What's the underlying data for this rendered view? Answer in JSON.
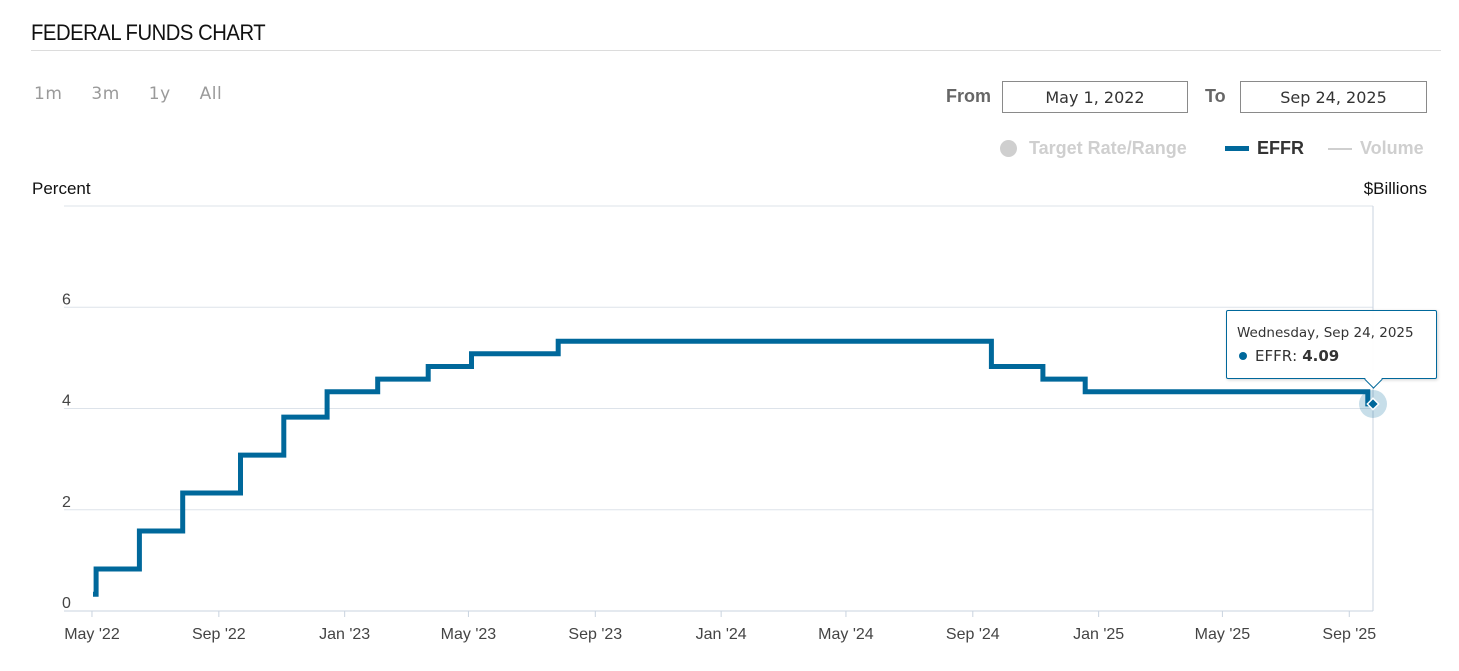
{
  "header": {
    "title": "FEDERAL FUNDS CHART"
  },
  "range_buttons": [
    "1m",
    "3m",
    "1y",
    "All"
  ],
  "date_range": {
    "from_label": "From",
    "from_value": "May 1, 2022",
    "to_label": "To",
    "to_value": "Sep 24, 2025"
  },
  "legend": {
    "target": "Target Rate/Range",
    "effr": "EFFR",
    "volume": "Volume"
  },
  "colors": {
    "effr": "#00689b",
    "grid": "#dde3ea",
    "legend_inactive": "#cfcfcf"
  },
  "tooltip": {
    "date": "Wednesday, Sep 24, 2025",
    "series": "EFFR",
    "value": "4.09"
  },
  "chart_data": {
    "type": "line",
    "step": true,
    "left_axis_label": "Percent",
    "right_axis_label": "$Billions",
    "y_ticks": [
      0,
      2,
      4,
      6
    ],
    "ylim": [
      0,
      8
    ],
    "xlim": [
      "2022-05-02",
      "2025-09-24"
    ],
    "x_ticks": [
      {
        "date": "2022-05-01",
        "label": "May '22"
      },
      {
        "date": "2022-09-01",
        "label": "Sep '22"
      },
      {
        "date": "2023-01-01",
        "label": "Jan '23"
      },
      {
        "date": "2023-05-01",
        "label": "May '23"
      },
      {
        "date": "2023-09-01",
        "label": "Sep '23"
      },
      {
        "date": "2024-01-01",
        "label": "Jan '24"
      },
      {
        "date": "2024-05-01",
        "label": "May '24"
      },
      {
        "date": "2024-09-01",
        "label": "Sep '24"
      },
      {
        "date": "2025-01-01",
        "label": "Jan '25"
      },
      {
        "date": "2025-05-01",
        "label": "May '25"
      },
      {
        "date": "2025-09-01",
        "label": "Sep '25"
      }
    ],
    "series": [
      {
        "name": "EFFR",
        "points": [
          [
            "2022-05-02",
            0.33
          ],
          [
            "2022-05-05",
            0.83
          ],
          [
            "2022-06-16",
            1.58
          ],
          [
            "2022-07-28",
            2.33
          ],
          [
            "2022-09-22",
            3.08
          ],
          [
            "2022-11-03",
            3.83
          ],
          [
            "2022-12-15",
            4.33
          ],
          [
            "2023-02-02",
            4.58
          ],
          [
            "2023-03-23",
            4.83
          ],
          [
            "2023-05-04",
            5.08
          ],
          [
            "2023-07-27",
            5.33
          ],
          [
            "2024-09-19",
            4.83
          ],
          [
            "2024-11-08",
            4.58
          ],
          [
            "2024-12-19",
            4.33
          ],
          [
            "2025-09-18",
            4.33
          ],
          [
            "2025-09-19",
            4.09
          ],
          [
            "2025-09-24",
            4.09
          ]
        ]
      }
    ]
  }
}
